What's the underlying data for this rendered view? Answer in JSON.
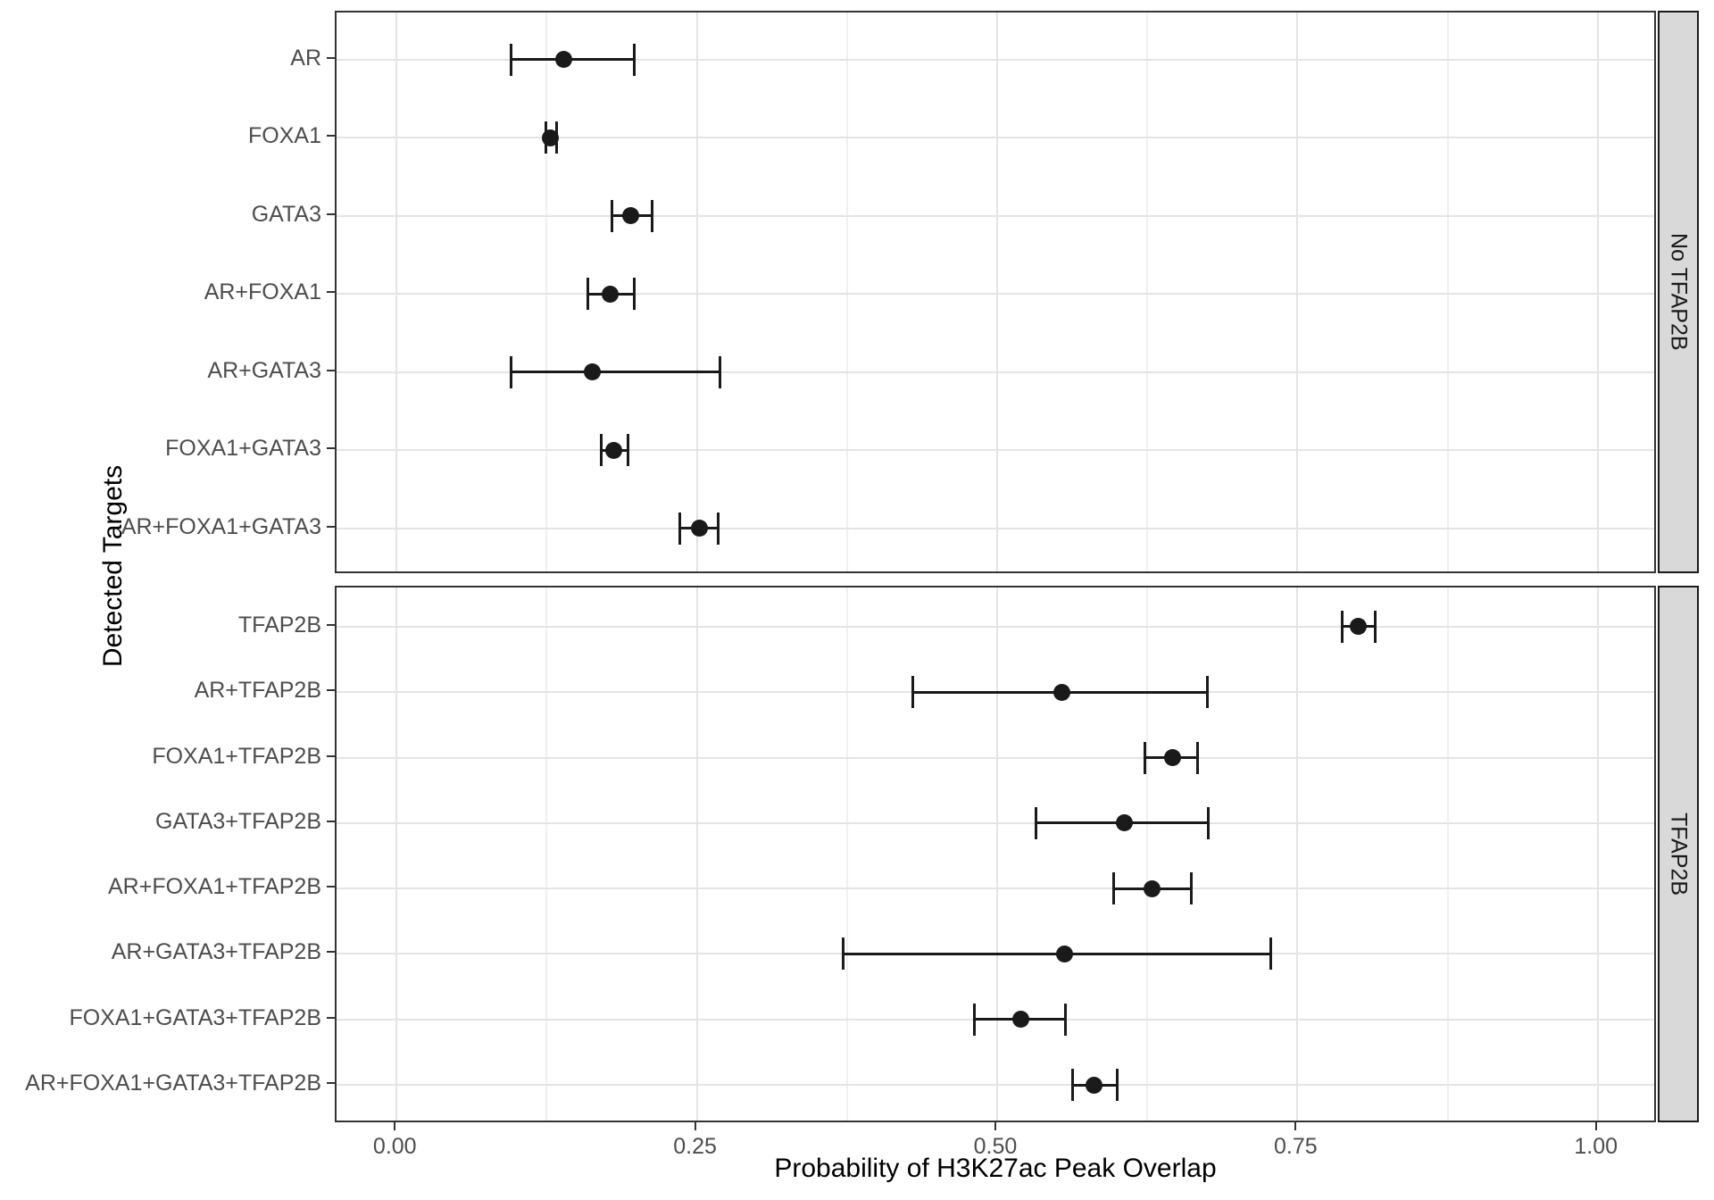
{
  "chart_data": {
    "type": "pointrange",
    "title": "",
    "xlabel": "Probability of H3K27ac Peak Overlap",
    "ylabel": "Detected Targets",
    "xlim": [
      -0.05,
      1.05
    ],
    "x_ticks": [
      0,
      0.25,
      0.5,
      0.75,
      1
    ],
    "x_tick_labels": [
      "0.00",
      "0.25",
      "0.50",
      "0.75",
      "1.00"
    ],
    "x_minor_gridlines": [
      0.125,
      0.375,
      0.625,
      0.875
    ],
    "grid": "major+minor vertical, major horizontal per row",
    "legend": "none",
    "facet_strip_side": "right",
    "facets": [
      {
        "label": "No TFAP2B",
        "rows": [
          {
            "target": "AR",
            "estimate": 0.139,
            "lower": 0.095,
            "upper": 0.198
          },
          {
            "target": "FOXA1",
            "estimate": 0.128,
            "lower": 0.124,
            "upper": 0.133
          },
          {
            "target": "GATA3",
            "estimate": 0.195,
            "lower": 0.179,
            "upper": 0.213
          },
          {
            "target": "AR+FOXA1",
            "estimate": 0.178,
            "lower": 0.159,
            "upper": 0.198
          },
          {
            "target": "AR+GATA3",
            "estimate": 0.163,
            "lower": 0.095,
            "upper": 0.269
          },
          {
            "target": "FOXA1+GATA3",
            "estimate": 0.181,
            "lower": 0.17,
            "upper": 0.193
          },
          {
            "target": "AR+FOXA1+GATA3",
            "estimate": 0.252,
            "lower": 0.236,
            "upper": 0.268
          }
        ]
      },
      {
        "label": "TFAP2B",
        "rows": [
          {
            "target": "TFAP2B",
            "estimate": 0.801,
            "lower": 0.787,
            "upper": 0.815
          },
          {
            "target": "AR+TFAP2B",
            "estimate": 0.554,
            "lower": 0.43,
            "upper": 0.675
          },
          {
            "target": "FOXA1+TFAP2B",
            "estimate": 0.646,
            "lower": 0.623,
            "upper": 0.667
          },
          {
            "target": "GATA3+TFAP2B",
            "estimate": 0.606,
            "lower": 0.532,
            "upper": 0.676
          },
          {
            "target": "AR+FOXA1+TFAP2B",
            "estimate": 0.629,
            "lower": 0.597,
            "upper": 0.662
          },
          {
            "target": "AR+GATA3+TFAP2B",
            "estimate": 0.556,
            "lower": 0.372,
            "upper": 0.728
          },
          {
            "target": "FOXA1+GATA3+TFAP2B",
            "estimate": 0.52,
            "lower": 0.481,
            "upper": 0.557
          },
          {
            "target": "AR+FOXA1+GATA3+TFAP2B",
            "estimate": 0.581,
            "lower": 0.563,
            "upper": 0.6
          }
        ]
      }
    ],
    "colors": {
      "point": "#1a1a1a",
      "error_bar": "#1a1a1a",
      "grid_major": "#e4e4e4",
      "grid_minor": "#f0f0f0",
      "panel_border": "#333333",
      "strip_fill": "#d9d9d9",
      "strip_border": "#1a1a1a",
      "axis_text": "#4d4d4d",
      "title_text": "#000000",
      "background": "#ffffff"
    }
  }
}
